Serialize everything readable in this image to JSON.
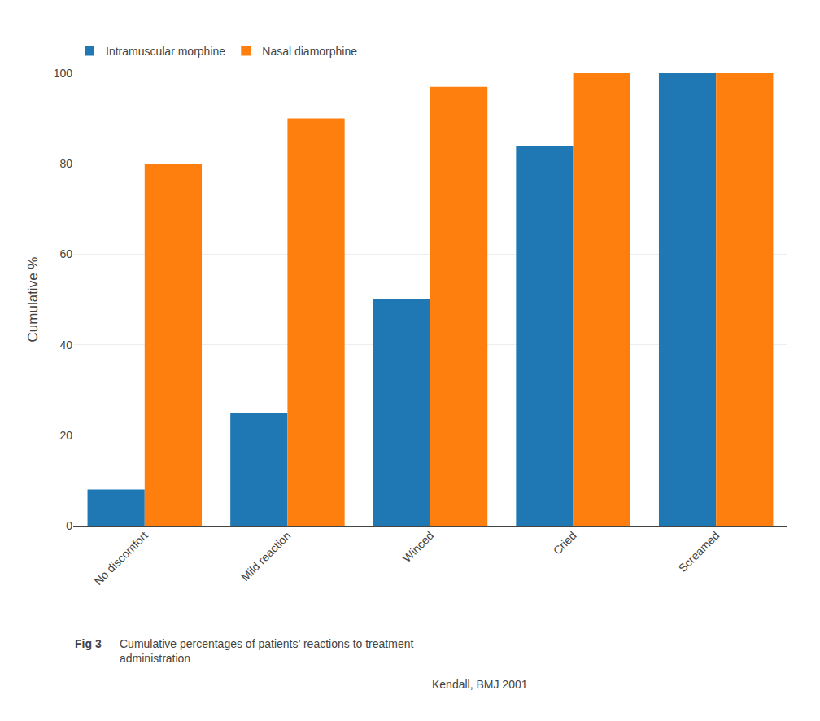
{
  "chart_data": {
    "type": "bar",
    "categories": [
      "No discomfort",
      "Mild reaction",
      "Winced",
      "Cried",
      "Screamed"
    ],
    "series": [
      {
        "name": "Intramuscular morphine",
        "values": [
          8,
          25,
          50,
          84,
          100
        ]
      },
      {
        "name": "Nasal diamorphine",
        "values": [
          80,
          90,
          97,
          100,
          100
        ]
      }
    ],
    "ylabel": "Cumulative %",
    "ylim": [
      0,
      100
    ],
    "yticks": [
      0,
      20,
      40,
      60,
      80,
      100
    ],
    "grid": true,
    "legend": "upper left",
    "annotations": [
      "Fig 3",
      "Cumulative percentages of patients’ reactions to treatment\nadministration",
      "Kendall, BMJ 2001"
    ]
  }
}
